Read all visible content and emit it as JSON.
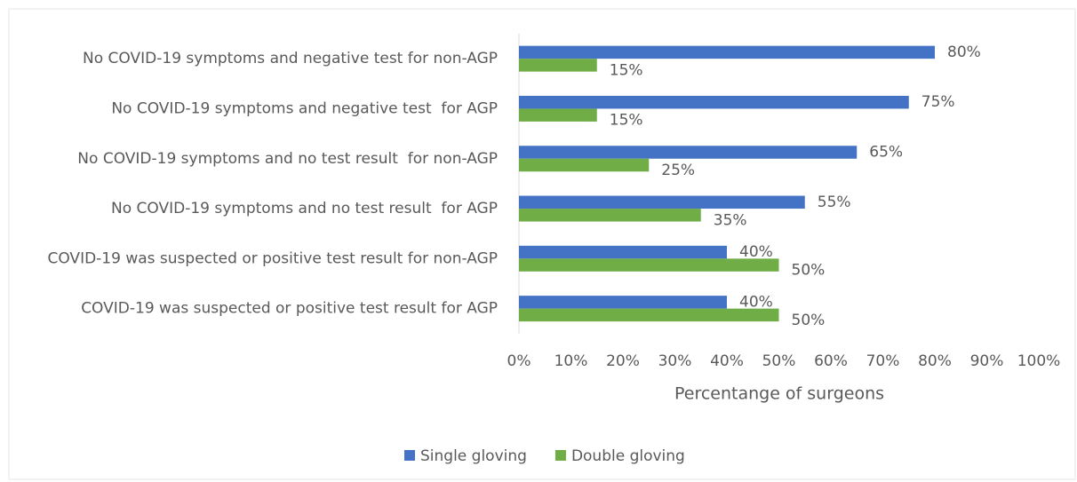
{
  "chart_data": {
    "type": "hbar",
    "categories": [
      "No COVID-19 symptoms and negative test for non-AGP",
      "No COVID-19 symptoms and negative test  for AGP",
      "No COVID-19 symptoms and no test result  for non-AGP",
      "No COVID-19 symptoms and no test result  for AGP",
      "COVID-19 was suspected or positive test result for non-AGP",
      "COVID-19 was suspected or positive test result for AGP"
    ],
    "series": [
      {
        "name": "Single gloving",
        "color": "#4472c4",
        "values": [
          80,
          75,
          65,
          55,
          40,
          40
        ],
        "value_labels": [
          "80%",
          "75%",
          "65%",
          "55%",
          "40%",
          "40%"
        ]
      },
      {
        "name": "Double gloving",
        "color": "#70ad47",
        "values": [
          15,
          15,
          25,
          35,
          50,
          50
        ],
        "value_labels": [
          "15%",
          "15%",
          "25%",
          "35%",
          "50%",
          "50%"
        ]
      }
    ],
    "xlabel": "Percentange of surgeons",
    "xlim": [
      0,
      100
    ],
    "xticks": [
      {
        "value": 0,
        "label": "0%"
      },
      {
        "value": 10,
        "label": "10%"
      },
      {
        "value": 20,
        "label": "20%"
      },
      {
        "value": 30,
        "label": "30%"
      },
      {
        "value": 40,
        "label": "40%"
      },
      {
        "value": 50,
        "label": "50%"
      },
      {
        "value": 60,
        "label": "60%"
      },
      {
        "value": 70,
        "label": "70%"
      },
      {
        "value": 80,
        "label": "80%"
      },
      {
        "value": 90,
        "label": "90%"
      },
      {
        "value": 100,
        "label": "100%"
      }
    ],
    "grid": false,
    "legend": "bottom"
  }
}
